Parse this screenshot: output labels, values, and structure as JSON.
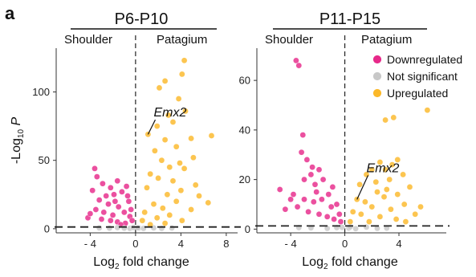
{
  "figure": {
    "panel_label": "a",
    "ylabel_parts": {
      "prefix": "-Log",
      "sub": "10",
      "suffix": " P"
    },
    "xlabel_parts": {
      "prefix": "Log",
      "sub": "2",
      "suffix": " fold change"
    }
  },
  "legend": {
    "items": [
      {
        "label": "Downregulated",
        "color": "#e7298a"
      },
      {
        "label": "Not significant",
        "color": "#c8c8c8"
      },
      {
        "label": "Upregulated",
        "color": "#fbb829"
      }
    ]
  },
  "colors": {
    "down": "#e7298a",
    "ns": "#c8c8c8",
    "up": "#fbb829",
    "threshold_line": "#222222",
    "axis": "#333333"
  },
  "chart_data": [
    {
      "type": "scatter",
      "title": "P6-P10",
      "group_labels": {
        "left": "Shoulder",
        "right": "Patagium"
      },
      "xlabel": "Log2 fold change",
      "ylabel": "-Log10 P",
      "xlim": [
        -7,
        9
      ],
      "ylim": [
        -3,
        132
      ],
      "xticks": [
        -4,
        0,
        4,
        8
      ],
      "yticks": [
        0,
        50,
        100
      ],
      "grid": false,
      "legend_position": "none",
      "threshold_y": 1.3,
      "fc_threshold_x": 0,
      "annotation": {
        "label": "Emx2",
        "x": 1.1,
        "y": 69,
        "text_x": 1.6,
        "text_y": 82
      },
      "series": [
        {
          "name": "Downregulated",
          "points": [
            [
              -3.6,
              44
            ],
            [
              -3.4,
              38
            ],
            [
              -2.9,
              33
            ],
            [
              -3.8,
              28
            ],
            [
              -2.2,
              30
            ],
            [
              -1.6,
              35
            ],
            [
              -2.6,
              24
            ],
            [
              -1.9,
              25
            ],
            [
              -3.2,
              21
            ],
            [
              -1.2,
              27
            ],
            [
              -0.8,
              31
            ],
            [
              -2.4,
              18
            ],
            [
              -1.5,
              16
            ],
            [
              -0.6,
              20
            ],
            [
              -3.5,
              14
            ],
            [
              -2.8,
              12
            ],
            [
              -1.0,
              12
            ],
            [
              -4.2,
              8
            ],
            [
              -3.0,
              7
            ],
            [
              -2.2,
              6
            ],
            [
              -1.6,
              5
            ],
            [
              -0.9,
              4
            ],
            [
              -0.5,
              9
            ],
            [
              -1.3,
              3
            ],
            [
              -2.0,
              10
            ],
            [
              -0.4,
              14
            ],
            [
              -0.3,
              6
            ],
            [
              -4.0,
              11
            ],
            [
              -1.8,
              20
            ],
            [
              -0.7,
              24
            ]
          ]
        },
        {
          "name": "Not significant",
          "points": [
            [
              -1.0,
              0.4
            ],
            [
              -0.5,
              0.3
            ],
            [
              0.3,
              0.5
            ],
            [
              0.7,
              0.2
            ],
            [
              -2.3,
              0.4
            ],
            [
              -1.6,
              0.8
            ],
            [
              1.6,
              0.6
            ],
            [
              2.3,
              0.3
            ],
            [
              -0.2,
              0.9
            ],
            [
              0.2,
              0.7
            ],
            [
              3.2,
              0.5
            ],
            [
              -3.2,
              0.6
            ]
          ]
        },
        {
          "name": "Upregulated",
          "points": [
            [
              4.3,
              123
            ],
            [
              4.1,
              113
            ],
            [
              2.6,
              108
            ],
            [
              2.1,
              103
            ],
            [
              3.8,
              95
            ],
            [
              4.4,
              86
            ],
            [
              2.9,
              83
            ],
            [
              3.3,
              78
            ],
            [
              1.9,
              75
            ],
            [
              1.1,
              69
            ],
            [
              6.7,
              68
            ],
            [
              4.9,
              66
            ],
            [
              2.6,
              65
            ],
            [
              3.6,
              60
            ],
            [
              5.1,
              52
            ],
            [
              1.7,
              57
            ],
            [
              2.3,
              50
            ],
            [
              3.0,
              45
            ],
            [
              4.3,
              44
            ],
            [
              1.3,
              40
            ],
            [
              2.0,
              37
            ],
            [
              3.3,
              35
            ],
            [
              5.3,
              32
            ],
            [
              4.0,
              28
            ],
            [
              1.0,
              30
            ],
            [
              2.8,
              25
            ],
            [
              6.4,
              19
            ],
            [
              3.6,
              20
            ],
            [
              1.6,
              18
            ],
            [
              2.4,
              15
            ],
            [
              4.9,
              14
            ],
            [
              0.8,
              12
            ],
            [
              3.0,
              10
            ],
            [
              1.9,
              8
            ],
            [
              0.6,
              6
            ],
            [
              4.1,
              6
            ],
            [
              2.6,
              4
            ],
            [
              1.3,
              3
            ],
            [
              5.6,
              24
            ],
            [
              3.9,
              48
            ]
          ]
        }
      ]
    },
    {
      "type": "scatter",
      "title": "P11-P15",
      "group_labels": {
        "left": "Shoulder",
        "right": "Patagium"
      },
      "xlabel": "Log2 fold change",
      "ylabel": "",
      "xlim": [
        -6.5,
        7.5
      ],
      "ylim": [
        -1.5,
        73
      ],
      "xticks": [
        -4,
        0,
        4
      ],
      "yticks": [
        0,
        20,
        40,
        60
      ],
      "grid": false,
      "legend_position": "top-right",
      "threshold_y": 1.3,
      "fc_threshold_x": 0,
      "annotation": {
        "label": "Emx2",
        "x": 0.9,
        "y": 12,
        "text_x": 1.6,
        "text_y": 23
      },
      "series": [
        {
          "name": "Downregulated",
          "points": [
            [
              -3.6,
              68
            ],
            [
              -3.4,
              66
            ],
            [
              -3.1,
              38
            ],
            [
              -3.2,
              31
            ],
            [
              -2.8,
              28
            ],
            [
              -2.4,
              25
            ],
            [
              -2.5,
              22
            ],
            [
              -1.9,
              24
            ],
            [
              -3.0,
              20
            ],
            [
              -2.2,
              18
            ],
            [
              -1.6,
              20
            ],
            [
              -4.8,
              16
            ],
            [
              -3.8,
              14
            ],
            [
              -3.0,
              12
            ],
            [
              -2.3,
              11
            ],
            [
              -1.7,
              12
            ],
            [
              -1.2,
              14
            ],
            [
              -0.9,
              17
            ],
            [
              -0.6,
              10
            ],
            [
              -4.4,
              8
            ],
            [
              -3.5,
              9
            ],
            [
              -2.7,
              7
            ],
            [
              -1.9,
              6
            ],
            [
              -1.3,
              5
            ],
            [
              -0.8,
              4
            ],
            [
              -0.4,
              6
            ],
            [
              -0.3,
              3
            ],
            [
              -2.1,
              15
            ],
            [
              -1.0,
              9
            ],
            [
              -4.0,
              12
            ]
          ]
        },
        {
          "name": "Not significant",
          "points": [
            [
              -1.3,
              0.3
            ],
            [
              -0.6,
              0.6
            ],
            [
              0.3,
              0.4
            ],
            [
              0.8,
              0.2
            ],
            [
              -2.5,
              0.5
            ],
            [
              1.6,
              0.8
            ],
            [
              2.4,
              0.3
            ],
            [
              -0.2,
              0.7
            ],
            [
              0.4,
              0.9
            ],
            [
              3.1,
              0.4
            ],
            [
              -3.4,
              0.6
            ]
          ]
        },
        {
          "name": "Upregulated",
          "points": [
            [
              6.1,
              48
            ],
            [
              3.6,
              45
            ],
            [
              3.0,
              44
            ],
            [
              3.9,
              28
            ],
            [
              3.5,
              26
            ],
            [
              3.0,
              24
            ],
            [
              2.6,
              27
            ],
            [
              4.3,
              22
            ],
            [
              2.0,
              24
            ],
            [
              1.6,
              22
            ],
            [
              3.3,
              20
            ],
            [
              4.8,
              17
            ],
            [
              2.3,
              19
            ],
            [
              1.1,
              18
            ],
            [
              0.9,
              12
            ],
            [
              3.9,
              14
            ],
            [
              2.9,
              13
            ],
            [
              1.5,
              11
            ],
            [
              4.4,
              10
            ],
            [
              2.0,
              9
            ],
            [
              3.4,
              8
            ],
            [
              0.6,
              7
            ],
            [
              1.2,
              6
            ],
            [
              2.6,
              5
            ],
            [
              3.8,
              4
            ],
            [
              5.2,
              6
            ],
            [
              0.4,
              3
            ],
            [
              1.8,
              3
            ],
            [
              4.5,
              3
            ],
            [
              5.6,
              9
            ],
            [
              2.4,
              15
            ],
            [
              3.1,
              16
            ]
          ]
        }
      ]
    }
  ]
}
